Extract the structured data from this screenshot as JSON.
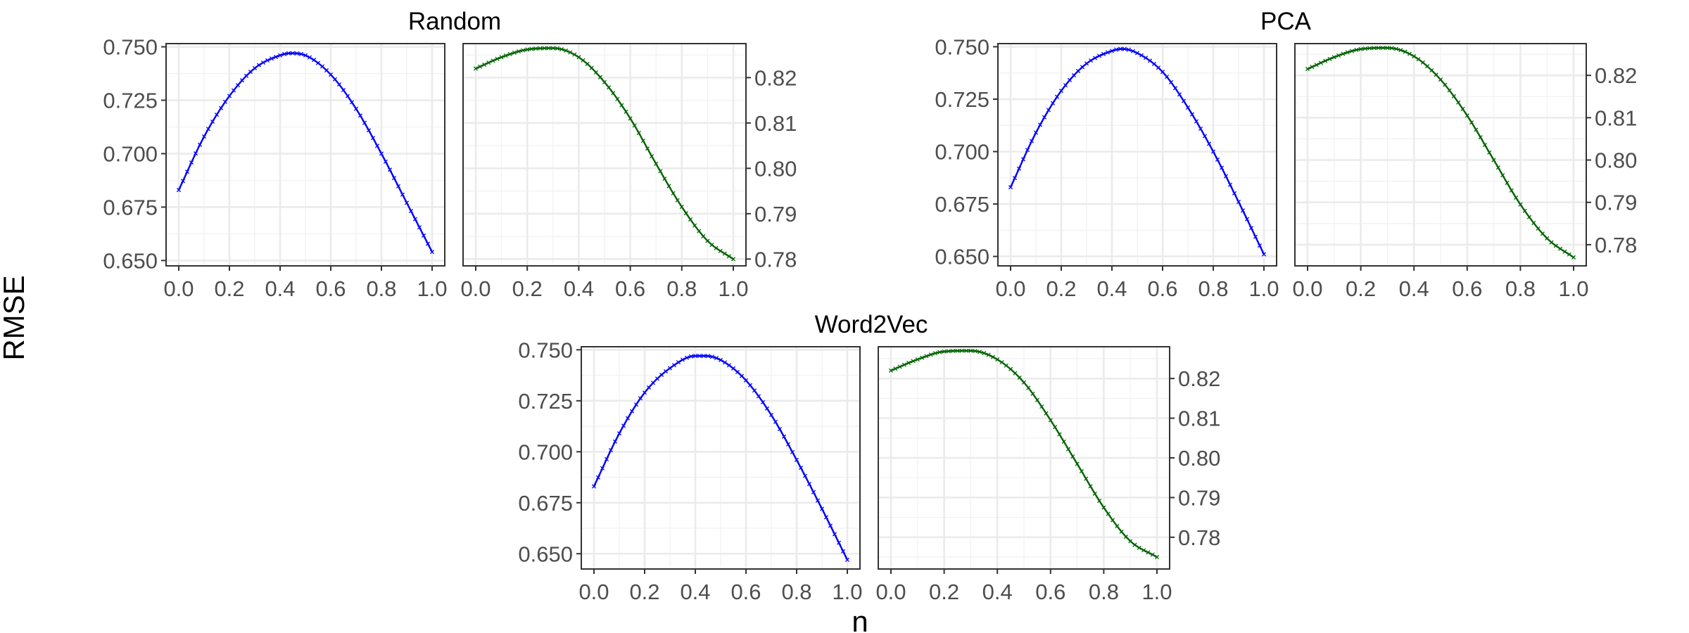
{
  "figure": {
    "ylabel": "RMSE",
    "xlabel": "n"
  },
  "chart_data": [
    {
      "type": "line",
      "title": "Random",
      "panels": [
        {
          "position": "left",
          "color": "#0000ff",
          "marker": "x",
          "xlim": [
            0,
            1
          ],
          "ylim": [
            0.6475,
            0.7515
          ],
          "yticks": [
            "0.650",
            "0.675",
            "0.700",
            "0.725",
            "0.750"
          ],
          "xticks": [
            "0.0",
            "0.2",
            "0.4",
            "0.6",
            "0.8",
            "1.0"
          ],
          "series": [
            {
              "x": [
                0.0,
                0.1,
                0.2,
                0.3,
                0.4,
                0.44,
                0.5,
                0.6,
                0.7,
                0.8,
                0.9,
                1.0
              ],
              "values": [
                0.683,
                0.708,
                0.727,
                0.74,
                0.746,
                0.747,
                0.746,
                0.737,
                0.721,
                0.7,
                0.677,
                0.654
              ]
            }
          ]
        },
        {
          "position": "right",
          "color": "#006400",
          "marker": "x",
          "xlim": [
            0,
            1
          ],
          "ylim": [
            0.7785,
            0.8275
          ],
          "yticks": [
            "0.78",
            "0.79",
            "0.80",
            "0.81",
            "0.82"
          ],
          "xticks": [
            "0.0",
            "0.2",
            "0.4",
            "0.6",
            "0.8",
            "1.0"
          ],
          "series": [
            {
              "x": [
                0.0,
                0.1,
                0.2,
                0.3,
                0.4,
                0.5,
                0.6,
                0.7,
                0.8,
                0.9,
                1.0
              ],
              "values": [
                0.822,
                0.8245,
                0.8262,
                0.8265,
                0.8245,
                0.819,
                0.811,
                0.801,
                0.7915,
                0.784,
                0.78
              ]
            }
          ]
        }
      ]
    },
    {
      "type": "line",
      "title": "PCA",
      "panels": [
        {
          "position": "left",
          "color": "#0000ff",
          "marker": "x",
          "xlim": [
            0,
            1
          ],
          "ylim": [
            0.6455,
            0.7515
          ],
          "yticks": [
            "0.650",
            "0.675",
            "0.700",
            "0.725",
            "0.750"
          ],
          "xticks": [
            "0.0",
            "0.2",
            "0.4",
            "0.6",
            "0.8",
            "1.0"
          ],
          "series": [
            {
              "x": [
                0.0,
                0.1,
                0.2,
                0.3,
                0.4,
                0.44,
                0.5,
                0.6,
                0.7,
                0.8,
                0.9,
                1.0
              ],
              "values": [
                0.683,
                0.709,
                0.729,
                0.742,
                0.748,
                0.749,
                0.747,
                0.738,
                0.721,
                0.7,
                0.676,
                0.651
              ]
            }
          ]
        },
        {
          "position": "right",
          "color": "#006400",
          "marker": "x",
          "xlim": [
            0,
            1
          ],
          "ylim": [
            0.775,
            0.8275
          ],
          "yticks": [
            "0.78",
            "0.79",
            "0.80",
            "0.81",
            "0.82"
          ],
          "xticks": [
            "0.0",
            "0.2",
            "0.4",
            "0.6",
            "0.8",
            "1.0"
          ],
          "series": [
            {
              "x": [
                0.0,
                0.1,
                0.2,
                0.3,
                0.4,
                0.5,
                0.6,
                0.7,
                0.8,
                0.9,
                1.0
              ],
              "values": [
                0.8215,
                0.8243,
                0.8262,
                0.8265,
                0.8245,
                0.819,
                0.8105,
                0.8,
                0.7895,
                0.7815,
                0.777
              ]
            }
          ]
        }
      ]
    },
    {
      "type": "line",
      "title": "Word2Vec",
      "panels": [
        {
          "position": "left",
          "color": "#0000ff",
          "marker": "x",
          "xlim": [
            0,
            1
          ],
          "ylim": [
            0.6425,
            0.7515
          ],
          "yticks": [
            "0.650",
            "0.675",
            "0.700",
            "0.725",
            "0.750"
          ],
          "xticks": [
            "0.0",
            "0.2",
            "0.4",
            "0.6",
            "0.8",
            "1.0"
          ],
          "series": [
            {
              "x": [
                0.0,
                0.1,
                0.2,
                0.3,
                0.4,
                0.44,
                0.5,
                0.6,
                0.7,
                0.8,
                0.9,
                1.0
              ],
              "values": [
                0.683,
                0.709,
                0.729,
                0.741,
                0.747,
                0.747,
                0.745,
                0.735,
                0.718,
                0.696,
                0.672,
                0.647
              ]
            }
          ]
        },
        {
          "position": "right",
          "color": "#006400",
          "marker": "x",
          "xlim": [
            0,
            1
          ],
          "ylim": [
            0.772,
            0.828
          ],
          "yticks": [
            "0.78",
            "0.79",
            "0.80",
            "0.81",
            "0.82"
          ],
          "xticks": [
            "0.0",
            "0.2",
            "0.4",
            "0.6",
            "0.8",
            "1.0"
          ],
          "series": [
            {
              "x": [
                0.0,
                0.1,
                0.2,
                0.3,
                0.4,
                0.5,
                0.6,
                0.7,
                0.8,
                0.9,
                1.0
              ],
              "values": [
                0.822,
                0.8248,
                0.8268,
                0.827,
                0.8248,
                0.819,
                0.8095,
                0.7985,
                0.7875,
                0.779,
                0.775
              ]
            }
          ]
        }
      ]
    }
  ]
}
